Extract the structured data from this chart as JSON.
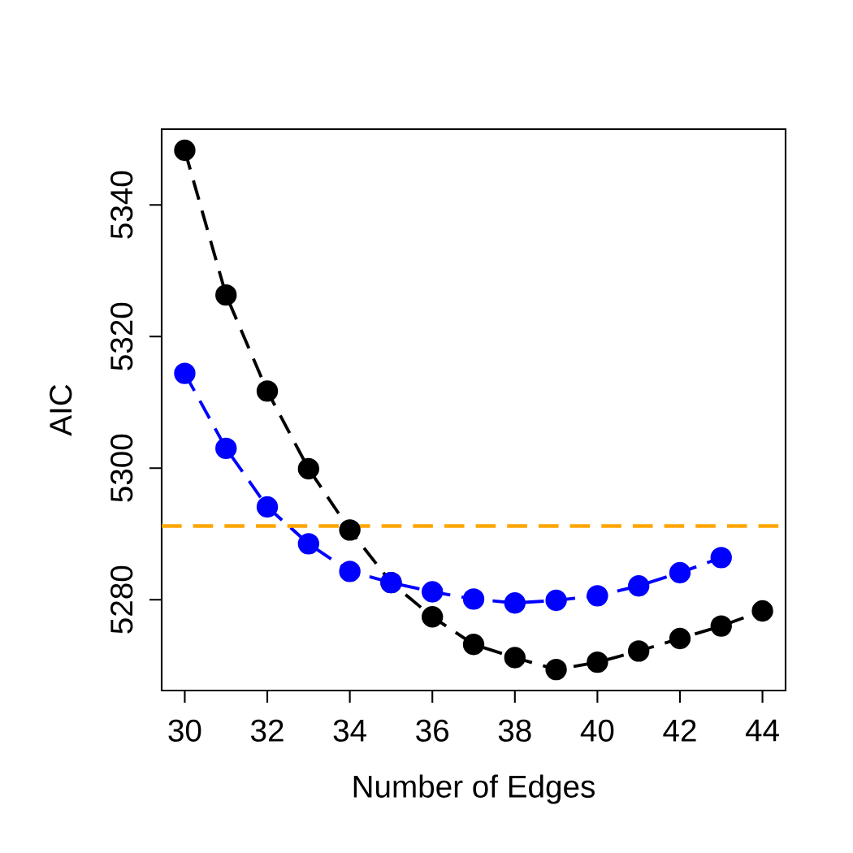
{
  "chart_data": {
    "type": "line",
    "xlabel": "Number of Edges",
    "ylabel": "AIC",
    "x": [
      30,
      31,
      32,
      33,
      34,
      35,
      36,
      37,
      38,
      39,
      40,
      41,
      42,
      43,
      44
    ],
    "series": [
      {
        "color": "#000000",
        "line_style": "dashed",
        "values": [
          5348.3,
          5326.3,
          5311.7,
          5299.9,
          5290.6,
          5282.6,
          5277.4,
          5273.2,
          5271.2,
          5269.4,
          5270.5,
          5272.2,
          5274.1,
          5276.0,
          5278.3
        ]
      },
      {
        "color": "#0000ff",
        "line_style": "dashed",
        "x": [
          30,
          31,
          32,
          33,
          34,
          35,
          36,
          37,
          38,
          39,
          40,
          41,
          42,
          43
        ],
        "values": [
          5314.4,
          5303.0,
          5294.1,
          5288.5,
          5284.3,
          5282.6,
          5281.2,
          5280.1,
          5279.5,
          5279.9,
          5280.6,
          5282.1,
          5284.1,
          5286.4
        ]
      }
    ],
    "marker": "circle",
    "xlim": [
      29.44,
      44.56
    ],
    "ylim": [
      5266.2,
      5351.5
    ],
    "xticks": [
      30,
      32,
      34,
      36,
      38,
      40,
      42,
      44
    ],
    "yticks": [
      5280,
      5300,
      5320,
      5340
    ],
    "ref_lines": [
      {
        "axis": "y",
        "value": 5291.2,
        "color": "#ffa500",
        "line_style": "dashed"
      }
    ],
    "tick_labels": true
  }
}
